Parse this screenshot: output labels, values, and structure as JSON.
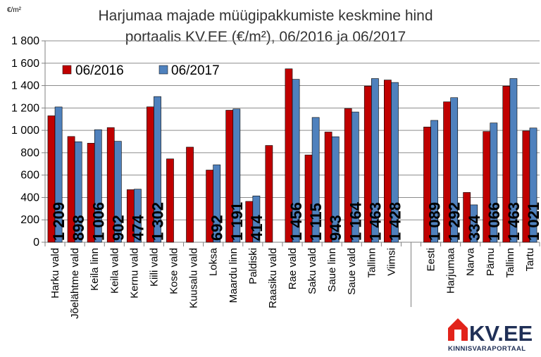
{
  "chart_data": {
    "type": "bar",
    "title": [
      "Harjumaa majade müügipakkumiste keskmine hind",
      "portaalis KV.EE (€/m²), 06/2016 ja 06/2017"
    ],
    "unit_label": "€/m²",
    "ylim": [
      0,
      1800
    ],
    "yticks": [
      0,
      200,
      400,
      600,
      800,
      1000,
      1200,
      1400,
      1600,
      1800
    ],
    "ytick_labels": [
      "0",
      "200",
      "400",
      "600",
      "800",
      "1 000",
      "1 200",
      "1 400",
      "1 600",
      "1 800"
    ],
    "grid": true,
    "legend_position": "top-left",
    "categories": [
      "Harku vald",
      "Jõelähtme vald",
      "Keila linn",
      "Keila vald",
      "Kernu vald",
      "Kiili vald",
      "Kose vald",
      "Kuusalu vald",
      "Loksa",
      "Maardu linn",
      "Paldiski",
      "Raasiku vald",
      "Rae vald",
      "Saku vald",
      "Saue linn",
      "Saue vald",
      "Tallinn",
      "Viimsi",
      "Eesti",
      "Harjumaa",
      "Narva",
      "Pärnu",
      "Tallinn",
      "Tartu"
    ],
    "groups": [
      18,
      6
    ],
    "series": [
      {
        "name": "06/2016",
        "color": "#c00000",
        "values": [
          1130,
          945,
          885,
          1025,
          470,
          1210,
          745,
          850,
          645,
          1180,
          365,
          865,
          1550,
          780,
          985,
          1195,
          1395,
          1450,
          1030,
          1255,
          445,
          990,
          1395,
          995
        ]
      },
      {
        "name": "06/2017",
        "color": "#4f81bd",
        "values": [
          1209,
          898,
          1006,
          902,
          474,
          1302,
          null,
          null,
          692,
          1191,
          414,
          null,
          1456,
          1115,
          943,
          1164,
          1463,
          1428,
          1089,
          1292,
          334,
          1066,
          1463,
          1021
        ]
      }
    ],
    "data_labels": [
      "1 209",
      "898",
      "1 006",
      "902",
      "474",
      "1 302",
      "",
      "",
      "692",
      "1 191",
      "414",
      "",
      "1 456",
      "1 115",
      "943",
      "1 164",
      "1 463",
      "1 428",
      "1 089",
      "1 292",
      "334",
      "1 066",
      "1 463",
      "1 021"
    ]
  },
  "branding": {
    "logo_text": "KV.EE",
    "logo_subtext": "KINNISVARAPORTAAL",
    "logo_color": "#e2231a"
  }
}
